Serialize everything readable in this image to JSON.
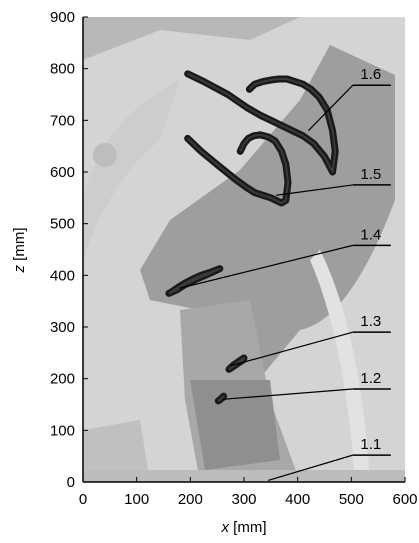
{
  "chart_data": {
    "type": "scatter",
    "xlabel": "x [mm]",
    "ylabel": "z [mm]",
    "xlim": [
      0,
      600
    ],
    "ylim": [
      0,
      900
    ],
    "xticks": [
      0,
      100,
      200,
      300,
      400,
      500,
      600
    ],
    "yticks": [
      0,
      100,
      200,
      300,
      400,
      500,
      600,
      700,
      800,
      900
    ],
    "grid": false,
    "background": "photograph of robotic arm overlaid on plot area",
    "colors": {
      "trajectory": "#1a1a1a",
      "background_photo": "#c8c8c8",
      "arm": "#9c9c9c"
    },
    "annotations": [
      {
        "label": "1.6",
        "point": [
          420,
          680
        ],
        "text_anchor": [
          555,
          768
        ]
      },
      {
        "label": "1.5",
        "point": [
          360,
          555
        ],
        "text_anchor": [
          555,
          575
        ]
      },
      {
        "label": "1.4",
        "point": [
          180,
          375
        ],
        "text_anchor": [
          555,
          458
        ]
      },
      {
        "label": "1.3",
        "point": [
          275,
          225
        ],
        "text_anchor": [
          555,
          290
        ]
      },
      {
        "label": "1.2",
        "point": [
          260,
          160
        ],
        "text_anchor": [
          555,
          180
        ]
      },
      {
        "label": "1.1",
        "point": [
          345,
          3
        ],
        "text_anchor": [
          555,
          52
        ]
      }
    ],
    "series": [
      {
        "name": "1.6",
        "x": [
          195,
          225,
          270,
          305,
          330,
          350,
          370,
          390,
          410,
          430,
          450,
          465,
          470,
          465,
          455,
          440,
          425,
          410,
          395,
          380,
          365,
          350,
          335,
          320,
          310
        ],
        "y": [
          790,
          775,
          750,
          725,
          710,
          700,
          690,
          680,
          670,
          655,
          630,
          600,
          640,
          680,
          720,
          745,
          760,
          770,
          775,
          780,
          780,
          778,
          775,
          770,
          760
        ]
      },
      {
        "name": "1.5",
        "x": [
          195,
          220,
          255,
          285,
          305,
          320,
          335,
          350,
          360,
          370,
          378,
          382,
          378,
          370,
          358,
          345,
          330,
          318,
          308,
          300,
          293
        ],
        "y": [
          665,
          640,
          610,
          585,
          570,
          560,
          555,
          550,
          545,
          540,
          545,
          580,
          615,
          640,
          660,
          668,
          672,
          670,
          665,
          655,
          640
        ]
      },
      {
        "name": "1.4",
        "x": [
          160,
          165,
          175,
          190,
          205,
          220,
          235,
          248,
          255,
          245,
          228,
          210,
          190,
          175,
          162
        ],
        "y": [
          365,
          368,
          375,
          385,
          393,
          400,
          405,
          410,
          413,
          408,
          400,
          392,
          382,
          372,
          366
        ]
      },
      {
        "name": "1.3",
        "x": [
          272,
          278,
          285,
          292,
          298,
          300,
          294,
          287,
          280,
          274
        ],
        "y": [
          218,
          222,
          227,
          232,
          236,
          240,
          236,
          231,
          226,
          220
        ]
      },
      {
        "name": "1.2",
        "x": [
          252,
          256,
          260,
          262,
          258,
          254
        ],
        "y": [
          157,
          160,
          163,
          166,
          162,
          158
        ]
      }
    ]
  }
}
